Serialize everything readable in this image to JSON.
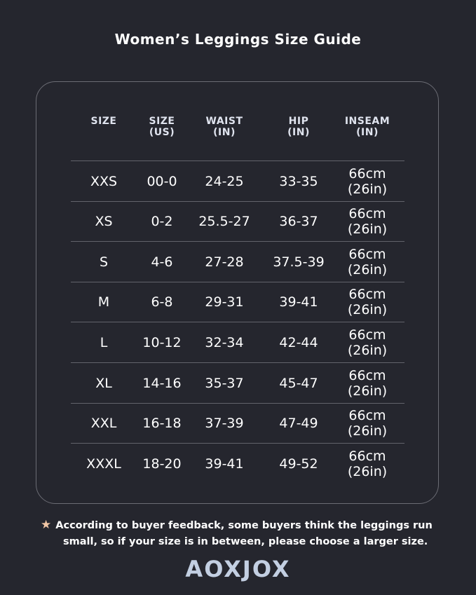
{
  "title": "Women’s Leggings Size Guide",
  "table": {
    "headers": [
      {
        "line1": "SIZE",
        "line2": ""
      },
      {
        "line1": "SIZE",
        "line2": "(US)"
      },
      {
        "line1": "WAIST",
        "line2": "(IN)"
      },
      {
        "line1": "HIP",
        "line2": "(IN)"
      },
      {
        "line1": "INSEAM",
        "line2": "(IN)"
      }
    ],
    "rows": [
      {
        "size": "XXS",
        "us": "00-0",
        "waist": "24-25",
        "hip": "33-35",
        "inseam_cm": "66cm",
        "inseam_in": "(26in)"
      },
      {
        "size": "XS",
        "us": "0-2",
        "waist": "25.5-27",
        "hip": "36-37",
        "inseam_cm": "66cm",
        "inseam_in": "(26in)"
      },
      {
        "size": "S",
        "us": "4-6",
        "waist": "27-28",
        "hip": "37.5-39",
        "inseam_cm": "66cm",
        "inseam_in": "(26in)"
      },
      {
        "size": "M",
        "us": "6-8",
        "waist": "29-31",
        "hip": "39-41",
        "inseam_cm": "66cm",
        "inseam_in": "(26in)"
      },
      {
        "size": "L",
        "us": "10-12",
        "waist": "32-34",
        "hip": "42-44",
        "inseam_cm": "66cm",
        "inseam_in": "(26in)"
      },
      {
        "size": "XL",
        "us": "14-16",
        "waist": "35-37",
        "hip": "45-47",
        "inseam_cm": "66cm",
        "inseam_in": "(26in)"
      },
      {
        "size": "XXL",
        "us": "16-18",
        "waist": "37-39",
        "hip": "47-49",
        "inseam_cm": "66cm",
        "inseam_in": "(26in)"
      },
      {
        "size": "XXXL",
        "us": "18-20",
        "waist": "39-41",
        "hip": "49-52",
        "inseam_cm": "66cm",
        "inseam_in": "(26in)"
      }
    ]
  },
  "note": {
    "icon": "star-icon",
    "line1": "According to buyer feedback, some buyers think the leggings run",
    "line2": "small, so if your size is in between, please choose a larger size."
  },
  "brand": "AOXJOX",
  "colors": {
    "background": "#25262e",
    "star": "#f2c7a6",
    "logo": "#c3cfe2"
  }
}
